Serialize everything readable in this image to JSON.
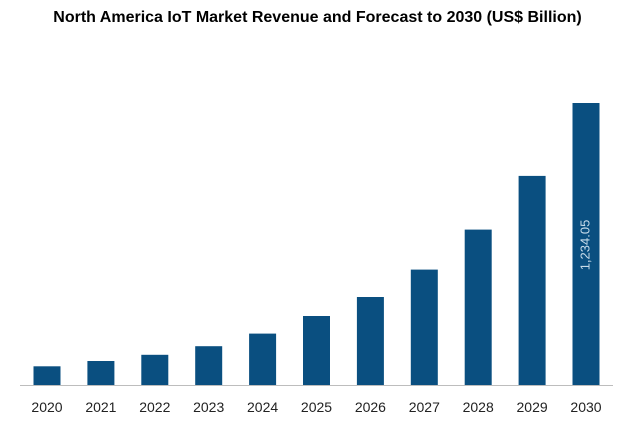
{
  "chart_data": {
    "type": "bar",
    "title": "North America IoT Market Revenue and Forecast to 2030 (US$ Billion)",
    "xlabel": "",
    "ylabel": "",
    "categories": [
      "2020",
      "2021",
      "2022",
      "2023",
      "2024",
      "2025",
      "2026",
      "2027",
      "2028",
      "2029",
      "2030"
    ],
    "values": [
      82,
      105,
      132,
      170,
      225,
      302,
      385,
      505,
      680,
      915,
      1234.05
    ],
    "data_labels": [
      {
        "category": "2030",
        "text": "1,234.05"
      }
    ],
    "ylim": [
      0,
      1234.05
    ],
    "grid": false,
    "legend": "none",
    "colors": {
      "bar": "#0a4f80",
      "axis": "#bdbdbd"
    }
  }
}
